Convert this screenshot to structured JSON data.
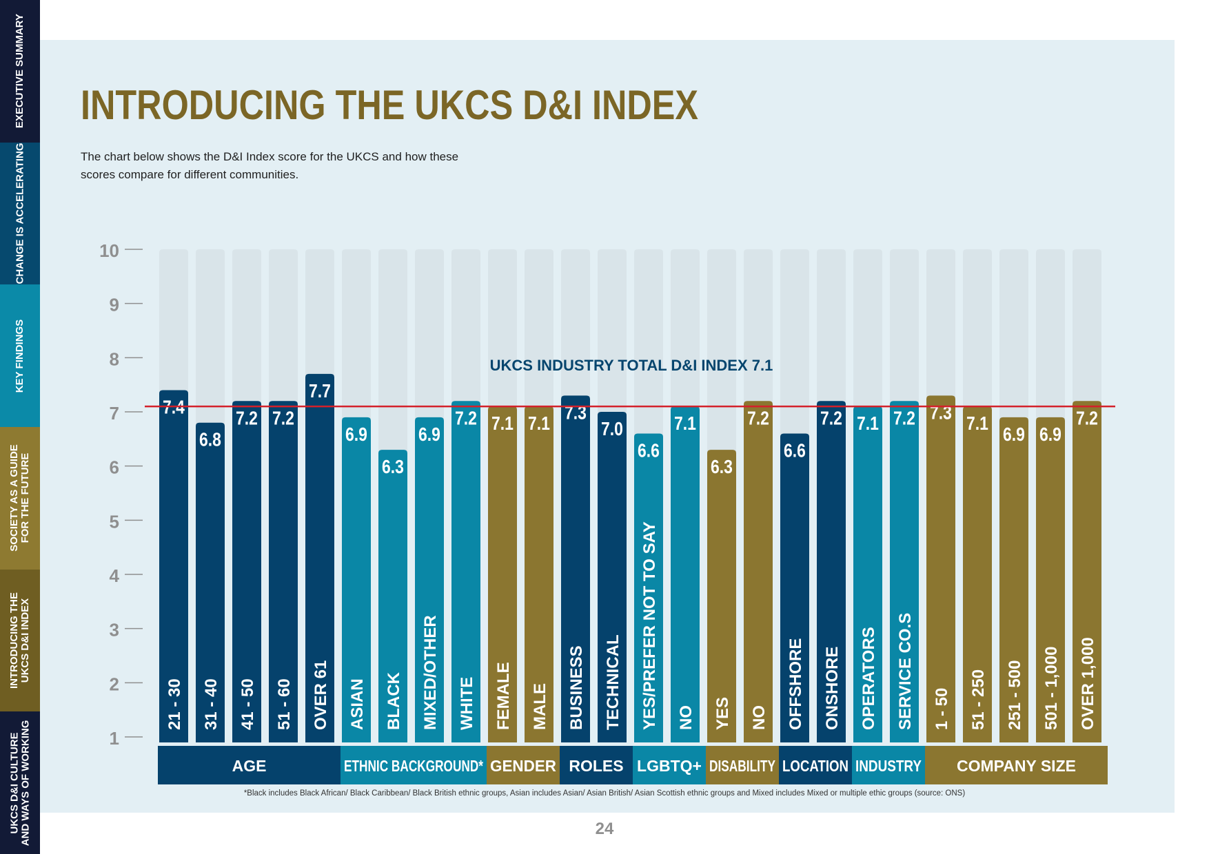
{
  "sidebar": {
    "items": [
      {
        "label": "EXECUTIVE SUMMARY",
        "color": "#121a36"
      },
      {
        "label": "CHANGE IS ACCELERATING",
        "color": "#06496e"
      },
      {
        "label": "KEY FINDINGS",
        "color": "#0b8aa8"
      },
      {
        "label": "SOCIETY AS A GUIDE\nFOR THE FUTURE",
        "color": "#8e7a31"
      },
      {
        "label": "INTRODUCING THE\nUKCS D&I INDEX",
        "color": "#6f5e22"
      },
      {
        "label": "UKCS D&I CULTURE\nAND WAYS OF WORKING",
        "color": "#121a36"
      }
    ]
  },
  "header": {
    "title": "INTRODUCING THE UKCS D&I INDEX",
    "intro": "The chart below shows the D&I Index score for the UKCS and how these scores compare for different communities."
  },
  "colors": {
    "navy": "#05426c",
    "teal": "#0a87a6",
    "gold": "#8b7630",
    "track": "#d9e4e9",
    "reference_line": "#d4202a",
    "reference_text": "#06456e",
    "axis_text": "#8f8f8f",
    "bar_text": "#ffffff"
  },
  "chart_data": {
    "type": "bar",
    "ylim": [
      1,
      10
    ],
    "yticks": [
      "10",
      "9",
      "8",
      "7",
      "6",
      "5",
      "4",
      "3",
      "2",
      "1"
    ],
    "reference_line": {
      "value": 7.1,
      "label": "UKCS INDUSTRY TOTAL D&I INDEX 7.1"
    },
    "groups": [
      {
        "label": "AGE",
        "color": "navy",
        "bars": [
          {
            "category": "21 - 30",
            "value": 7.4,
            "color": "navy"
          },
          {
            "category": "31 - 40",
            "value": 6.8,
            "color": "navy"
          },
          {
            "category": "41 - 50",
            "value": 7.2,
            "color": "navy"
          },
          {
            "category": "51 - 60",
            "value": 7.2,
            "color": "navy"
          },
          {
            "category": "OVER 61",
            "value": 7.7,
            "color": "navy"
          }
        ]
      },
      {
        "label": "ETHNIC BACKGROUND*",
        "color": "teal",
        "bars": [
          {
            "category": "ASIAN",
            "value": 6.9,
            "color": "teal"
          },
          {
            "category": "BLACK",
            "value": 6.3,
            "color": "teal"
          },
          {
            "category": "MIXED/OTHER",
            "value": 6.9,
            "color": "teal"
          },
          {
            "category": "WHITE",
            "value": 7.2,
            "color": "teal"
          }
        ]
      },
      {
        "label": "GENDER",
        "color": "gold",
        "bars": [
          {
            "category": "FEMALE",
            "value": 7.1,
            "color": "gold"
          },
          {
            "category": "MALE",
            "value": 7.1,
            "color": "gold"
          }
        ]
      },
      {
        "label": "ROLES",
        "color": "navy",
        "bars": [
          {
            "category": "BUSINESS",
            "value": 7.3,
            "color": "navy"
          },
          {
            "category": "TECHNICAL",
            "value": 7.0,
            "color": "navy"
          }
        ]
      },
      {
        "label": "LGBTQ+",
        "color": "teal",
        "bars": [
          {
            "category": "YES/PREFER NOT TO SAY",
            "value": 6.6,
            "color": "teal"
          },
          {
            "category": "NO",
            "value": 7.1,
            "color": "teal"
          }
        ]
      },
      {
        "label": "DISABILITY",
        "color": "gold",
        "bars": [
          {
            "category": "YES",
            "value": 6.3,
            "color": "gold"
          },
          {
            "category": "NO",
            "value": 7.2,
            "color": "gold"
          }
        ]
      },
      {
        "label": "LOCATION",
        "color": "navy",
        "bars": [
          {
            "category": "OFFSHORE",
            "value": 6.6,
            "color": "navy"
          },
          {
            "category": "ONSHORE",
            "value": 7.2,
            "color": "navy"
          }
        ]
      },
      {
        "label": "INDUSTRY",
        "color": "teal",
        "bars": [
          {
            "category": "OPERATORS",
            "value": 7.1,
            "color": "teal"
          },
          {
            "category": "SERVICE CO.S",
            "value": 7.2,
            "color": "teal"
          }
        ]
      },
      {
        "label": "COMPANY SIZE",
        "color": "gold",
        "bars": [
          {
            "category": "1 - 50",
            "value": 7.3,
            "color": "gold"
          },
          {
            "category": "51 - 250",
            "value": 7.1,
            "color": "gold"
          },
          {
            "category": "251 - 500",
            "value": 6.9,
            "color": "gold"
          },
          {
            "category": "501 - 1,000",
            "value": 6.9,
            "color": "gold"
          },
          {
            "category": "OVER 1,000",
            "value": 7.2,
            "color": "gold"
          }
        ]
      }
    ]
  },
  "footnote": "*Black includes Black African/ Black Caribbean/ Black British ethnic groups, Asian includes Asian/ Asian British/ Asian Scottish ethnic groups and Mixed includes Mixed or multiple ethic groups (source: ONS)",
  "page_number": "24"
}
